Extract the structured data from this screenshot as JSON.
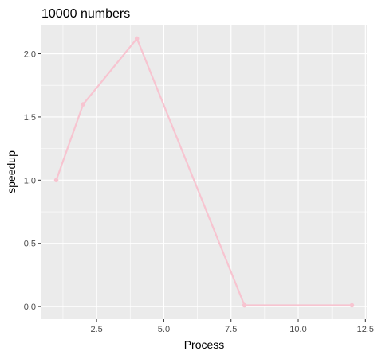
{
  "chart_data": {
    "type": "line",
    "title": "10000 numbers",
    "xlabel": "Process",
    "ylabel": "speedup",
    "x": [
      1,
      2,
      4,
      8,
      12
    ],
    "series": [
      {
        "values": [
          1.0,
          1.6,
          2.12,
          0.01,
          0.01
        ]
      }
    ],
    "xlim": [
      0.45,
      12.55
    ],
    "ylim": [
      -0.1,
      2.23
    ],
    "x_ticks": [
      2.5,
      5.0,
      7.5,
      10.0,
      12.5
    ],
    "x_tick_labels": [
      "2.5",
      "5.0",
      "7.5",
      "10.0",
      "12.5"
    ],
    "y_ticks": [
      0.0,
      0.5,
      1.0,
      1.5,
      2.0
    ],
    "y_tick_labels": [
      "0.0",
      "0.5",
      "1.0",
      "1.5",
      "2.0"
    ],
    "grid": true,
    "colors": {
      "series": "#f7c4d0",
      "panel_background": "#ebebeb",
      "grid": "#ffffff"
    }
  }
}
